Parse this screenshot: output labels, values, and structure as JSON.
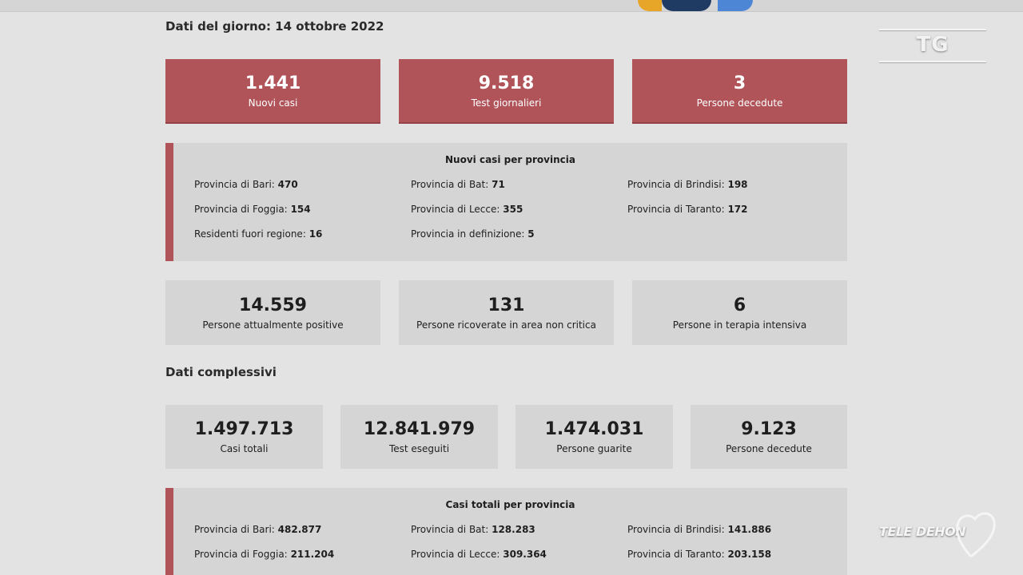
{
  "daily": {
    "title": "Dati del giorno: 14 ottobre 2022",
    "cards": [
      {
        "value": "1.441",
        "label": "Nuovi casi"
      },
      {
        "value": "9.518",
        "label": "Test giornalieri"
      },
      {
        "value": "3",
        "label": "Persone decedute"
      }
    ],
    "province_title": "Nuovi casi per provincia",
    "province": [
      {
        "label": "Provincia di Bari:",
        "value": "470"
      },
      {
        "label": "Provincia di Bat:",
        "value": "71"
      },
      {
        "label": "Provincia di Brindisi:",
        "value": "198"
      },
      {
        "label": "Provincia di Foggia:",
        "value": "154"
      },
      {
        "label": "Provincia di Lecce:",
        "value": "355"
      },
      {
        "label": "Provincia di Taranto:",
        "value": "172"
      },
      {
        "label": "Residenti fuori regione:",
        "value": "16"
      },
      {
        "label": "Provincia in definizione:",
        "value": "5"
      }
    ],
    "status_cards": [
      {
        "value": "14.559",
        "label": "Persone attualmente positive"
      },
      {
        "value": "131",
        "label": "Persone ricoverate in area non critica"
      },
      {
        "value": "6",
        "label": "Persone in terapia intensiva"
      }
    ]
  },
  "overall": {
    "title": "Dati complessivi",
    "cards": [
      {
        "value": "1.497.713",
        "label": "Casi totali"
      },
      {
        "value": "12.841.979",
        "label": "Test eseguiti"
      },
      {
        "value": "1.474.031",
        "label": "Persone guarite"
      },
      {
        "value": "9.123",
        "label": "Persone decedute"
      }
    ],
    "province_title": "Casi totali per provincia",
    "province": [
      {
        "label": "Provincia di Bari:",
        "value": "482.877"
      },
      {
        "label": "Provincia di Bat:",
        "value": "128.283"
      },
      {
        "label": "Provincia di Brindisi:",
        "value": "141.886"
      },
      {
        "label": "Provincia di Foggia:",
        "value": "211.204"
      },
      {
        "label": "Provincia di Lecce:",
        "value": "309.364"
      },
      {
        "label": "Provincia di Taranto:",
        "value": "203.158"
      }
    ]
  },
  "overlay": {
    "tg_label": "TG",
    "brand": "TELE DEHON"
  },
  "colors": {
    "accent_red": "#b05459",
    "card_grey": "#d5d5d5",
    "background": "#e3e3e3"
  }
}
